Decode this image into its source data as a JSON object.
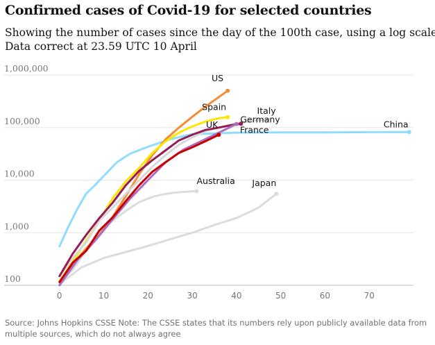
{
  "header": {
    "title": "Confirmed cases of Covid-19 for selected countries",
    "subtitle_line1": "Showing the number of cases since the day of the 100th case, using a log scale.",
    "subtitle_line2": "Data correct at 23.59 UTC 10 April"
  },
  "footer": {
    "source": "Source: Johns Hopkins CSSE Note: The CSSE states that its numbers rely upon publicly available data from multiple sources, which do not always agree"
  },
  "chart_data": {
    "type": "line",
    "title": "Confirmed cases of Covid-19 for selected countries",
    "xlabel": "",
    "ylabel": "",
    "yscale": "log",
    "xlim": [
      -2,
      80
    ],
    "ylim": [
      100,
      1000000
    ],
    "x_ticks": [
      0,
      10,
      20,
      30,
      40,
      50,
      60,
      70
    ],
    "x_tick_labels": [
      "0",
      "10",
      "20",
      "30",
      "40",
      "50",
      "60",
      "70"
    ],
    "y_ticks": [
      100,
      1000,
      10000,
      100000,
      1000000
    ],
    "y_tick_labels": [
      "100",
      "1,000",
      "10,000",
      "100,000",
      "1,000,000"
    ],
    "grid": "horizontal",
    "legend": "none (direct labels)",
    "series": [
      {
        "name": "Australia",
        "color": "#dcdcdc",
        "label_at": 31,
        "x": [
          0,
          3,
          6,
          9,
          12,
          15,
          18,
          21,
          24,
          27,
          31
        ],
        "y": [
          110,
          200,
          450,
          1000,
          1700,
          2600,
          3800,
          4800,
          5500,
          5900,
          6200
        ]
      },
      {
        "name": "Japan",
        "color": "#dcdcdc",
        "label_at": 49,
        "x": [
          0,
          5,
          10,
          15,
          20,
          25,
          30,
          35,
          40,
          45,
          49
        ],
        "y": [
          105,
          220,
          330,
          430,
          560,
          750,
          1000,
          1400,
          1900,
          3000,
          5500
        ]
      },
      {
        "name": "China",
        "color": "#90dcff",
        "label_at": 79,
        "x": [
          0,
          2,
          4,
          6,
          8,
          10,
          13,
          16,
          20,
          25,
          30,
          40,
          50,
          60,
          70,
          79
        ],
        "y": [
          550,
          1300,
          2800,
          5500,
          8000,
          12000,
          22000,
          32000,
          43000,
          60000,
          75000,
          80000,
          80800,
          81000,
          81600,
          82000
        ]
      },
      {
        "name": "US",
        "color": "#f68b33",
        "label_at": 38,
        "x": [
          0,
          3,
          6,
          9,
          12,
          15,
          18,
          21,
          24,
          27,
          30,
          33,
          36,
          38
        ],
        "y": [
          120,
          250,
          500,
          900,
          2000,
          5000,
          13000,
          30000,
          60000,
          100000,
          160000,
          250000,
          380000,
          500000
        ]
      },
      {
        "name": "Spain",
        "color": "#ffe500",
        "label_at": 38,
        "x": [
          0,
          3,
          6,
          9,
          12,
          15,
          18,
          21,
          24,
          27,
          30,
          33,
          36,
          38
        ],
        "y": [
          120,
          280,
          700,
          1700,
          4500,
          9500,
          17000,
          33000,
          55000,
          80000,
          105000,
          130000,
          150000,
          158000
        ]
      },
      {
        "name": "Italy",
        "color": "#d8d8d8",
        "label_at": 47,
        "x": [
          0,
          3,
          6,
          9,
          12,
          15,
          18,
          21,
          24,
          27,
          30,
          33,
          36,
          40,
          44,
          47
        ],
        "y": [
          150,
          330,
          650,
          1700,
          3000,
          5500,
          10000,
          18000,
          30000,
          47000,
          65000,
          85000,
          100000,
          120000,
          135000,
          143000
        ]
      },
      {
        "name": "Germany",
        "color": "#951c55",
        "label_at": 41,
        "x": [
          0,
          3,
          6,
          9,
          12,
          15,
          18,
          21,
          24,
          27,
          30,
          33,
          36,
          39,
          41
        ],
        "y": [
          150,
          400,
          900,
          1900,
          3700,
          8000,
          15000,
          24000,
          37000,
          57000,
          73000,
          90000,
          100000,
          112000,
          118000
        ]
      },
      {
        "name": "France",
        "color": "#aa6dc1",
        "label_at": 40,
        "x": [
          0,
          4,
          8,
          12,
          16,
          20,
          24,
          28,
          32,
          36,
          40
        ],
        "y": [
          100,
          300,
          700,
          1800,
          4500,
          10000,
          22000,
          38000,
          55000,
          80000,
          117000
        ]
      },
      {
        "name": "UK",
        "color": "#c70000",
        "label_at": 36,
        "x": [
          0,
          3,
          6,
          9,
          12,
          15,
          18,
          21,
          24,
          27,
          30,
          33,
          36
        ],
        "y": [
          115,
          270,
          450,
          1100,
          1950,
          4000,
          8000,
          14500,
          22000,
          33000,
          42000,
          55000,
          73000
        ]
      }
    ]
  }
}
